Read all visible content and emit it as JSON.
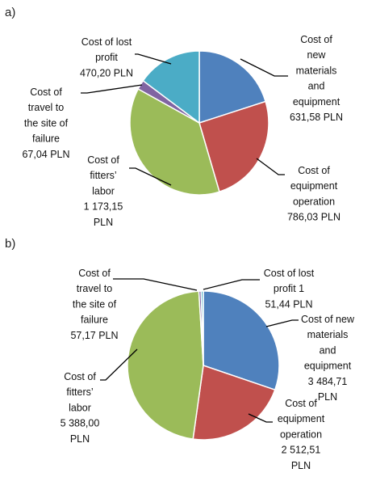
{
  "chart_data": [
    {
      "type": "pie",
      "panel_label": "a)",
      "slices": [
        {
          "label": [
            "Cost of",
            "new",
            "materials",
            "and",
            "equipment",
            "631,58 PLN"
          ],
          "value": 631.58,
          "color": "#4f81bd"
        },
        {
          "label": [
            "Cost of",
            "equipment",
            "operation",
            "786,03 PLN"
          ],
          "value": 786.03,
          "color": "#c0504d"
        },
        {
          "label": [
            "Cost of",
            "fitters’",
            "labor",
            "1 173,15",
            "PLN"
          ],
          "value": 1173.15,
          "color": "#9bbb59"
        },
        {
          "label": [
            "Cost of",
            "travel to",
            "the site of",
            "failure",
            "67,04 PLN"
          ],
          "value": 67.04,
          "color": "#8064a2"
        },
        {
          "label": [
            "Cost of lost",
            "profit",
            "470,20 PLN"
          ],
          "value": 470.2,
          "color": "#4bacc6"
        }
      ]
    },
    {
      "type": "pie",
      "panel_label": "b)",
      "slices": [
        {
          "label": [
            "Cost of new",
            "materials",
            "and",
            "equipment",
            "3 484,71",
            "PLN"
          ],
          "value": 3484.71,
          "color": "#4f81bd"
        },
        {
          "label": [
            "Cost of",
            "equipment",
            "operation",
            "2 512,51",
            "PLN"
          ],
          "value": 2512.51,
          "color": "#c0504d"
        },
        {
          "label": [
            "Cost of",
            "fitters’",
            "labor",
            "5 388,00",
            "PLN"
          ],
          "value": 5388.0,
          "color": "#9bbb59"
        },
        {
          "label": [
            "Cost of",
            "travel to",
            "the site of",
            "failure",
            "57,17 PLN"
          ],
          "value": 57.17,
          "color": "#8064a2"
        },
        {
          "label": [
            "Cost of lost",
            "profit 1",
            "51,44 PLN"
          ],
          "value": 51.44,
          "color": "#4bacc6"
        }
      ]
    }
  ]
}
